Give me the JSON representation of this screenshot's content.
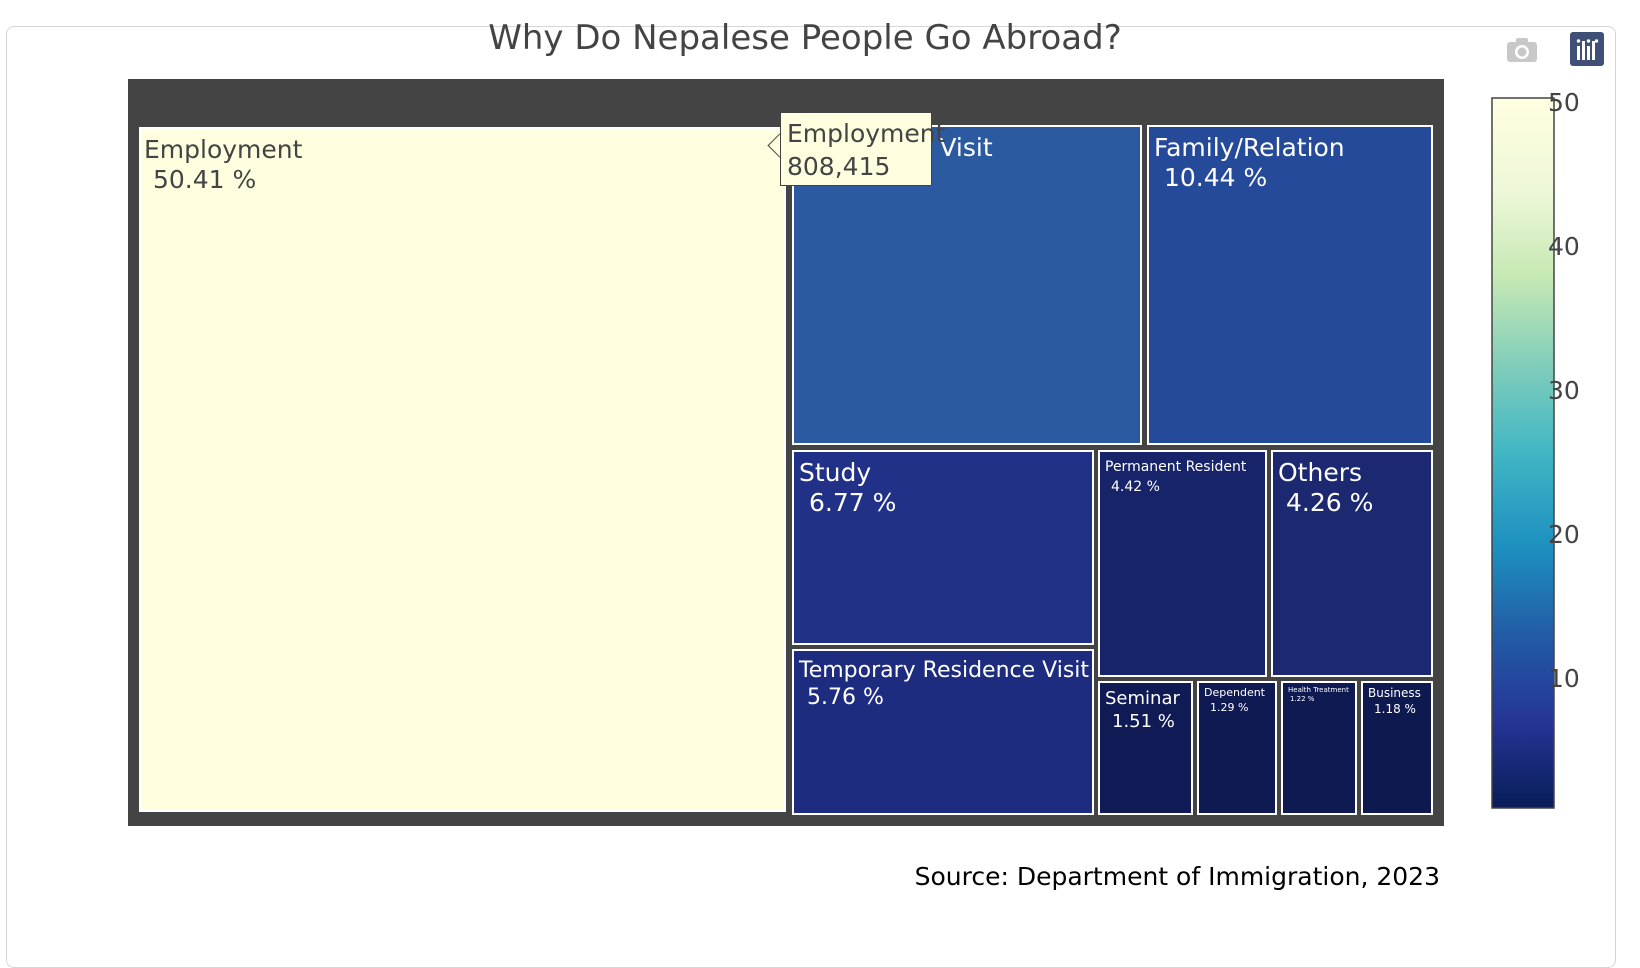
{
  "title": "Why Do Nepalese People Go Abroad?",
  "source": "Source: Department of Immigration, 2023",
  "modebar": {
    "camera_icon": "camera-icon",
    "plotly_icon": "plotly-logo-icon"
  },
  "tooltip": {
    "label": "Employment",
    "value": "808,415"
  },
  "colorbar": {
    "ticks": [
      "50",
      "40",
      "30",
      "20",
      "10"
    ],
    "tick_values": [
      50,
      40,
      30,
      20,
      10
    ],
    "range": [
      1.18,
      50.41
    ]
  },
  "colors": {
    "background": "#444444",
    "employment": "#ffffe0",
    "pilgrimage": "#2c5aa0",
    "family": "#264a9a",
    "study": "#223188",
    "temp": "#1e2c80",
    "perm": "#18246a",
    "others": "#1c2870",
    "small": "#0f1a52"
  },
  "chart_data": {
    "type": "treemap",
    "title": "Why Do Nepalese People Go Abroad?",
    "colorscale": "YlGnBu",
    "items": [
      {
        "label": "Employment",
        "value_text": "50.41 %",
        "percent": 50.41,
        "color": "#ffffe0"
      },
      {
        "label": "Pilgrimage Visit",
        "value_text": "",
        "percent": 12.0,
        "color": "#2c5aa0"
      },
      {
        "label": "Family/Relation",
        "value_text": "10.44 %",
        "percent": 10.44,
        "color": "#264a9a"
      },
      {
        "label": "Study",
        "value_text": "6.77 %",
        "percent": 6.77,
        "color": "#223188"
      },
      {
        "label": "Temporary Residence Visit",
        "value_text": "5.76 %",
        "percent": 5.76,
        "color": "#1e2c80"
      },
      {
        "label": "Permanent Resident",
        "value_text": "4.42 %",
        "percent": 4.42,
        "color": "#18246a"
      },
      {
        "label": "Others",
        "value_text": "4.26 %",
        "percent": 4.26,
        "color": "#1c2870"
      },
      {
        "label": "Seminar",
        "value_text": "1.51 %",
        "percent": 1.51,
        "color": "#101b56"
      },
      {
        "label": "Dependent",
        "value_text": "1.29 %",
        "percent": 1.29,
        "color": "#0f1a52"
      },
      {
        "label": "Health Treatment",
        "value_text": "1.22 %",
        "percent": 1.22,
        "color": "#0f1a52"
      },
      {
        "label": "Business",
        "value_text": "1.18 %",
        "percent": 1.18,
        "color": "#0e1950"
      }
    ]
  }
}
